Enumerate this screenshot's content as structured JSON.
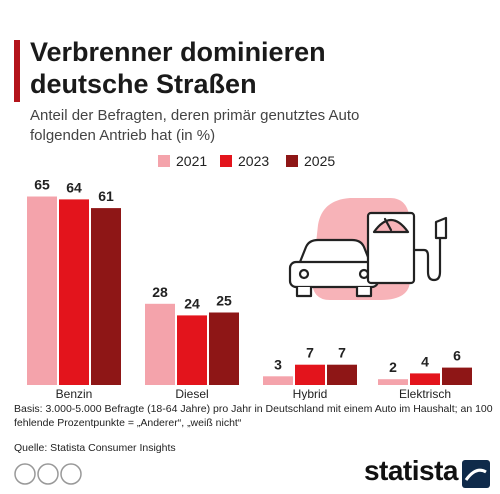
{
  "chart_data": {
    "type": "bar",
    "title": "Verbrenner dominieren deutsche Straßen",
    "subtitle": "Anteil der Befragten, deren primär genutztes Auto folgenden Antrieb hat (in %)",
    "categories": [
      "Benzin",
      "Diesel",
      "Hybrid",
      "Elektrisch"
    ],
    "series": [
      {
        "name": "2021",
        "color": "#f4a3ab",
        "values": [
          65,
          28,
          3,
          2
        ]
      },
      {
        "name": "2023",
        "color": "#e3141c",
        "values": [
          64,
          24,
          7,
          4
        ]
      },
      {
        "name": "2025",
        "color": "#8e1616",
        "values": [
          61,
          25,
          7,
          6
        ]
      }
    ],
    "note": "Basis: 3.000-5.000 Befragte (18-64 Jahre) pro Jahr in Deutschland mit einem Auto im Haushalt; an 100 fehlende Prozentpunkte = „Anderer“, „weiß nicht“",
    "source": "Quelle: Statista Consumer Insights",
    "logo": "statista"
  }
}
